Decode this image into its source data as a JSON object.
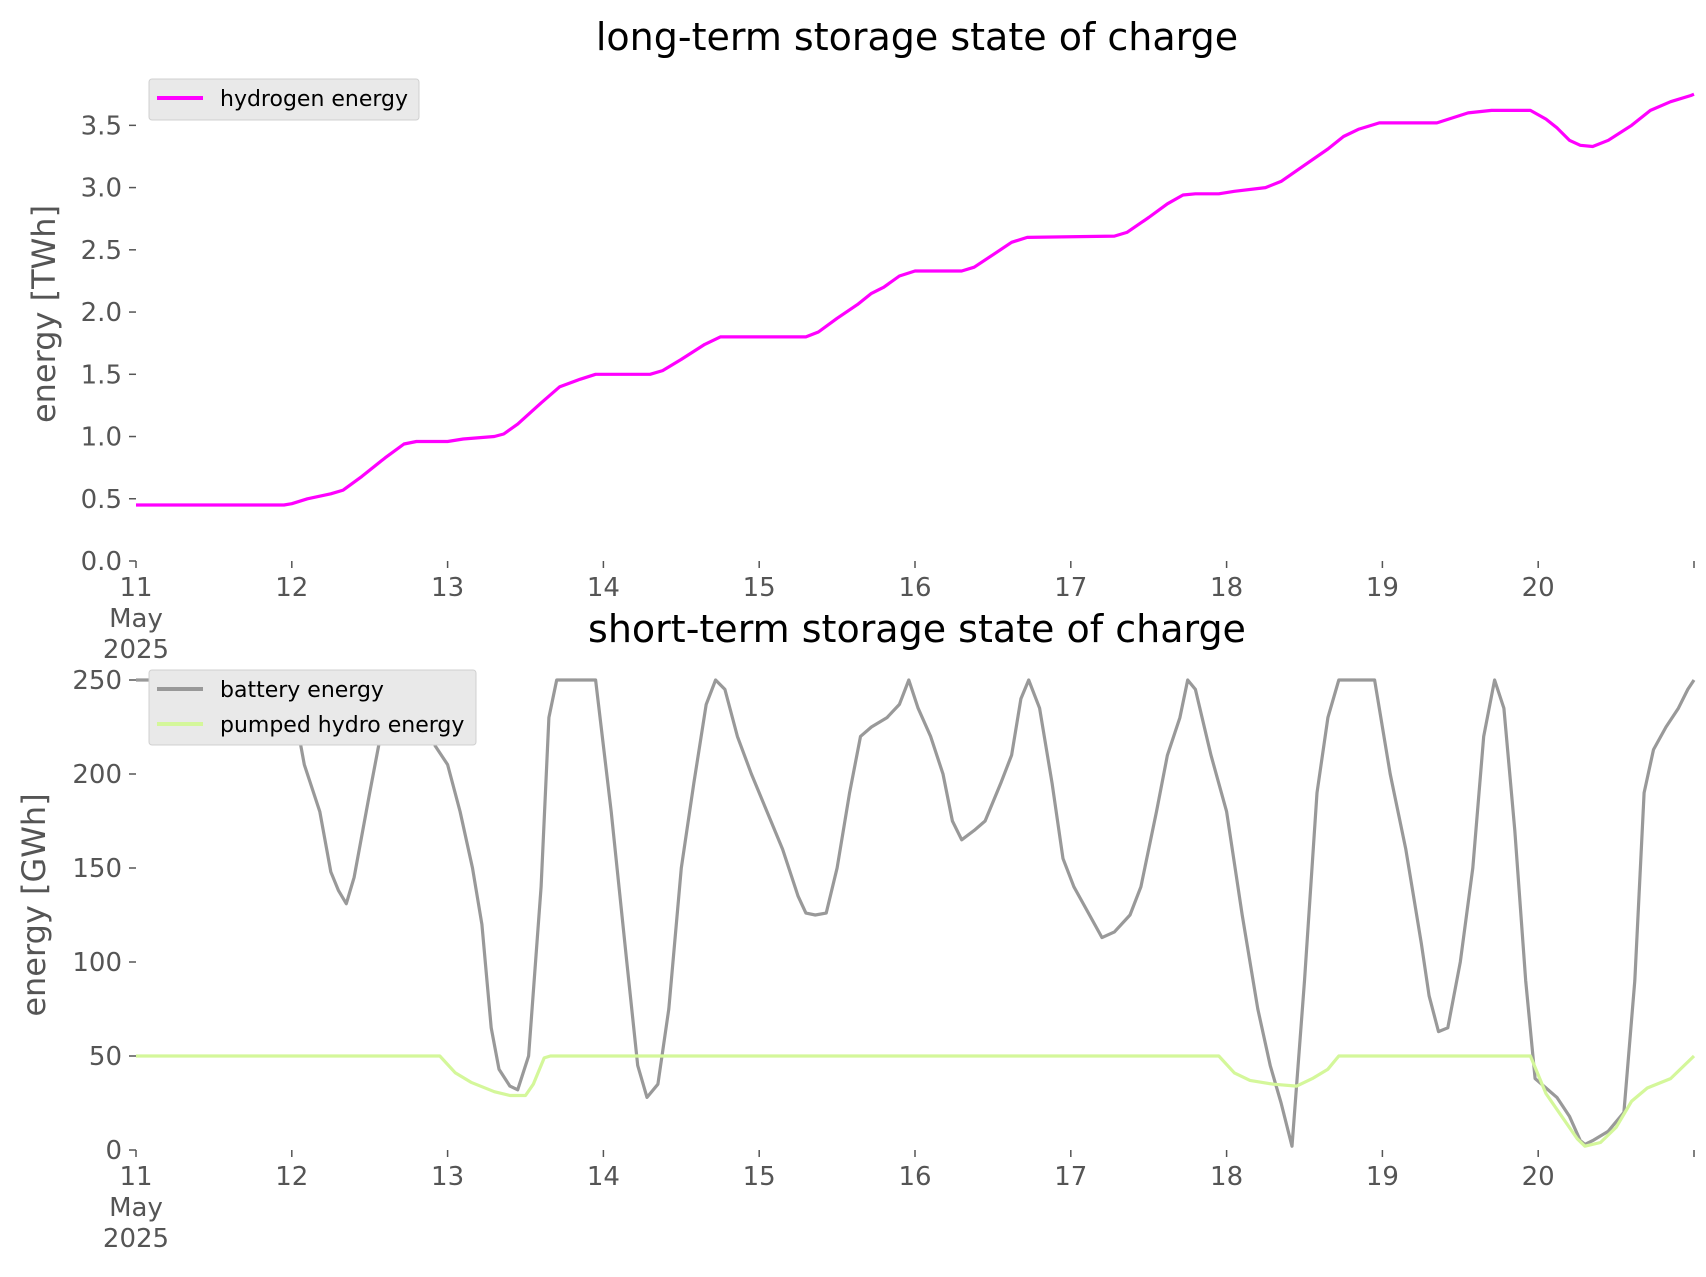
{
  "chart_data": [
    {
      "type": "line",
      "title": "long-term storage state of charge",
      "xlabel": "",
      "ylabel": "energy [TWh]",
      "x_unit": "days (11 May 2025 00:00 = 11)",
      "xlim": [
        11,
        21
      ],
      "ylim": [
        0,
        3.8
      ],
      "x_ticks": [
        "11\nMay\n2025",
        "12",
        "13",
        "14",
        "15",
        "16",
        "17",
        "18",
        "19",
        "20"
      ],
      "y_ticks": [
        "0.0",
        "0.5",
        "1.0",
        "1.5",
        "2.0",
        "2.5",
        "3.0",
        "3.5"
      ],
      "y_tick_values": [
        0,
        0.5,
        1.0,
        1.5,
        2.0,
        2.5,
        3.0,
        3.5
      ],
      "grid": false,
      "legend": "top-left",
      "series": [
        {
          "name": "hydrogen energy",
          "color": "#ff00ff",
          "points": [
            [
              11.0,
              0.45
            ],
            [
              11.95,
              0.45
            ],
            [
              12.0,
              0.46
            ],
            [
              12.1,
              0.5
            ],
            [
              12.25,
              0.54
            ],
            [
              12.33,
              0.57
            ],
            [
              12.45,
              0.68
            ],
            [
              12.6,
              0.83
            ],
            [
              12.72,
              0.94
            ],
            [
              12.8,
              0.96
            ],
            [
              13.0,
              0.96
            ],
            [
              13.1,
              0.98
            ],
            [
              13.3,
              1.0
            ],
            [
              13.36,
              1.02
            ],
            [
              13.45,
              1.1
            ],
            [
              13.6,
              1.27
            ],
            [
              13.72,
              1.4
            ],
            [
              13.85,
              1.46
            ],
            [
              13.95,
              1.5
            ],
            [
              14.3,
              1.5
            ],
            [
              14.38,
              1.53
            ],
            [
              14.5,
              1.62
            ],
            [
              14.65,
              1.74
            ],
            [
              14.75,
              1.8
            ],
            [
              15.3,
              1.8
            ],
            [
              15.38,
              1.84
            ],
            [
              15.5,
              1.95
            ],
            [
              15.63,
              2.06
            ],
            [
              15.72,
              2.15
            ],
            [
              15.8,
              2.2
            ],
            [
              15.9,
              2.29
            ],
            [
              16.0,
              2.33
            ],
            [
              16.3,
              2.33
            ],
            [
              16.38,
              2.36
            ],
            [
              16.5,
              2.46
            ],
            [
              16.62,
              2.56
            ],
            [
              16.72,
              2.6
            ],
            [
              17.28,
              2.61
            ],
            [
              17.36,
              2.64
            ],
            [
              17.5,
              2.76
            ],
            [
              17.62,
              2.87
            ],
            [
              17.72,
              2.94
            ],
            [
              17.8,
              2.95
            ],
            [
              17.95,
              2.95
            ],
            [
              18.05,
              2.97
            ],
            [
              18.25,
              3.0
            ],
            [
              18.35,
              3.05
            ],
            [
              18.5,
              3.18
            ],
            [
              18.65,
              3.31
            ],
            [
              18.75,
              3.41
            ],
            [
              18.85,
              3.47
            ],
            [
              18.98,
              3.52
            ],
            [
              19.35,
              3.52
            ],
            [
              19.45,
              3.56
            ],
            [
              19.55,
              3.6
            ],
            [
              19.7,
              3.62
            ],
            [
              19.95,
              3.62
            ],
            [
              20.05,
              3.55
            ],
            [
              20.12,
              3.48
            ],
            [
              20.2,
              3.38
            ],
            [
              20.27,
              3.34
            ],
            [
              20.35,
              3.33
            ],
            [
              20.45,
              3.38
            ],
            [
              20.6,
              3.5
            ],
            [
              20.72,
              3.62
            ],
            [
              20.85,
              3.69
            ],
            [
              20.98,
              3.74
            ],
            [
              21.0,
              3.75
            ]
          ]
        }
      ]
    },
    {
      "type": "line",
      "title": "short-term storage state of charge",
      "xlabel": "",
      "ylabel": "energy [GWh]",
      "x_unit": "days (11 May 2025 00:00 = 11)",
      "xlim": [
        11,
        21
      ],
      "ylim": [
        0,
        250
      ],
      "x_ticks": [
        "11\nMay\n2025",
        "12",
        "13",
        "14",
        "15",
        "16",
        "17",
        "18",
        "19",
        "20"
      ],
      "y_ticks": [
        "0",
        "50",
        "100",
        "150",
        "200",
        "250"
      ],
      "y_tick_values": [
        0,
        50,
        100,
        150,
        200,
        250
      ],
      "grid": false,
      "legend": "top-left",
      "series": [
        {
          "name": "battery energy",
          "color": "#999999",
          "points": [
            [
              11.0,
              250
            ],
            [
              11.98,
              250
            ],
            [
              12.08,
              205
            ],
            [
              12.18,
              180
            ],
            [
              12.25,
              148
            ],
            [
              12.3,
              138
            ],
            [
              12.35,
              131
            ],
            [
              12.4,
              145
            ],
            [
              12.5,
              190
            ],
            [
              12.58,
              225
            ],
            [
              12.65,
              250
            ],
            [
              12.85,
              250
            ],
            [
              12.92,
              215
            ],
            [
              13.0,
              205
            ],
            [
              13.08,
              180
            ],
            [
              13.16,
              150
            ],
            [
              13.22,
              120
            ],
            [
              13.28,
              65
            ],
            [
              13.33,
              43
            ],
            [
              13.4,
              34
            ],
            [
              13.45,
              32
            ],
            [
              13.52,
              50
            ],
            [
              13.6,
              140
            ],
            [
              13.65,
              230
            ],
            [
              13.7,
              250
            ],
            [
              13.95,
              250
            ],
            [
              14.05,
              180
            ],
            [
              14.15,
              100
            ],
            [
              14.22,
              45
            ],
            [
              14.28,
              28
            ],
            [
              14.35,
              35
            ],
            [
              14.42,
              75
            ],
            [
              14.5,
              150
            ],
            [
              14.58,
              195
            ],
            [
              14.66,
              237
            ],
            [
              14.72,
              250
            ],
            [
              14.78,
              245
            ],
            [
              14.86,
              220
            ],
            [
              14.95,
              200
            ],
            [
              15.05,
              180
            ],
            [
              15.15,
              160
            ],
            [
              15.25,
              135
            ],
            [
              15.3,
              126
            ],
            [
              15.36,
              125
            ],
            [
              15.43,
              126
            ],
            [
              15.5,
              150
            ],
            [
              15.58,
              190
            ],
            [
              15.65,
              220
            ],
            [
              15.72,
              225
            ],
            [
              15.82,
              230
            ],
            [
              15.9,
              237
            ],
            [
              15.96,
              250
            ],
            [
              16.02,
              235
            ],
            [
              16.1,
              220
            ],
            [
              16.18,
              200
            ],
            [
              16.24,
              175
            ],
            [
              16.3,
              165
            ],
            [
              16.38,
              170
            ],
            [
              16.45,
              175
            ],
            [
              16.55,
              195
            ],
            [
              16.62,
              210
            ],
            [
              16.68,
              240
            ],
            [
              16.73,
              250
            ],
            [
              16.8,
              235
            ],
            [
              16.88,
              195
            ],
            [
              16.95,
              155
            ],
            [
              17.02,
              140
            ],
            [
              17.1,
              128
            ],
            [
              17.2,
              113
            ],
            [
              17.28,
              116
            ],
            [
              17.38,
              125
            ],
            [
              17.45,
              140
            ],
            [
              17.55,
              180
            ],
            [
              17.62,
              210
            ],
            [
              17.7,
              230
            ],
            [
              17.75,
              250
            ],
            [
              17.8,
              245
            ],
            [
              17.9,
              210
            ],
            [
              18.0,
              180
            ],
            [
              18.1,
              125
            ],
            [
              18.2,
              75
            ],
            [
              18.28,
              45
            ],
            [
              18.35,
              25
            ],
            [
              18.42,
              2
            ],
            [
              18.5,
              90
            ],
            [
              18.58,
              190
            ],
            [
              18.65,
              230
            ],
            [
              18.72,
              250
            ],
            [
              18.95,
              250
            ],
            [
              19.05,
              200
            ],
            [
              19.15,
              160
            ],
            [
              19.25,
              110
            ],
            [
              19.3,
              82
            ],
            [
              19.36,
              63
            ],
            [
              19.42,
              65
            ],
            [
              19.5,
              100
            ],
            [
              19.58,
              150
            ],
            [
              19.65,
              220
            ],
            [
              19.72,
              250
            ],
            [
              19.78,
              235
            ],
            [
              19.85,
              170
            ],
            [
              19.92,
              90
            ],
            [
              19.98,
              38
            ],
            [
              20.05,
              33
            ],
            [
              20.12,
              28
            ],
            [
              20.2,
              18
            ],
            [
              20.27,
              5
            ],
            [
              20.3,
              3
            ],
            [
              20.35,
              5
            ],
            [
              20.45,
              10
            ],
            [
              20.55,
              20
            ],
            [
              20.62,
              90
            ],
            [
              20.68,
              190
            ],
            [
              20.74,
              213
            ],
            [
              20.82,
              225
            ],
            [
              20.9,
              235
            ],
            [
              20.96,
              245
            ],
            [
              21.0,
              250
            ]
          ]
        },
        {
          "name": "pumped hydro energy",
          "color": "#d4f79a",
          "points": [
            [
              11.0,
              50
            ],
            [
              12.95,
              50
            ],
            [
              13.05,
              41
            ],
            [
              13.15,
              36
            ],
            [
              13.3,
              31
            ],
            [
              13.4,
              29
            ],
            [
              13.5,
              29
            ],
            [
              13.55,
              35
            ],
            [
              13.62,
              49
            ],
            [
              13.66,
              50
            ],
            [
              17.95,
              50
            ],
            [
              18.05,
              41
            ],
            [
              18.15,
              37
            ],
            [
              18.3,
              35
            ],
            [
              18.45,
              34
            ],
            [
              18.55,
              38
            ],
            [
              18.65,
              43
            ],
            [
              18.72,
              50
            ],
            [
              19.95,
              50
            ],
            [
              20.05,
              30
            ],
            [
              20.15,
              18
            ],
            [
              20.25,
              6
            ],
            [
              20.3,
              2
            ],
            [
              20.4,
              4
            ],
            [
              20.5,
              12
            ],
            [
              20.6,
              26
            ],
            [
              20.7,
              33
            ],
            [
              20.85,
              38
            ],
            [
              21.0,
              50
            ]
          ]
        }
      ]
    }
  ]
}
